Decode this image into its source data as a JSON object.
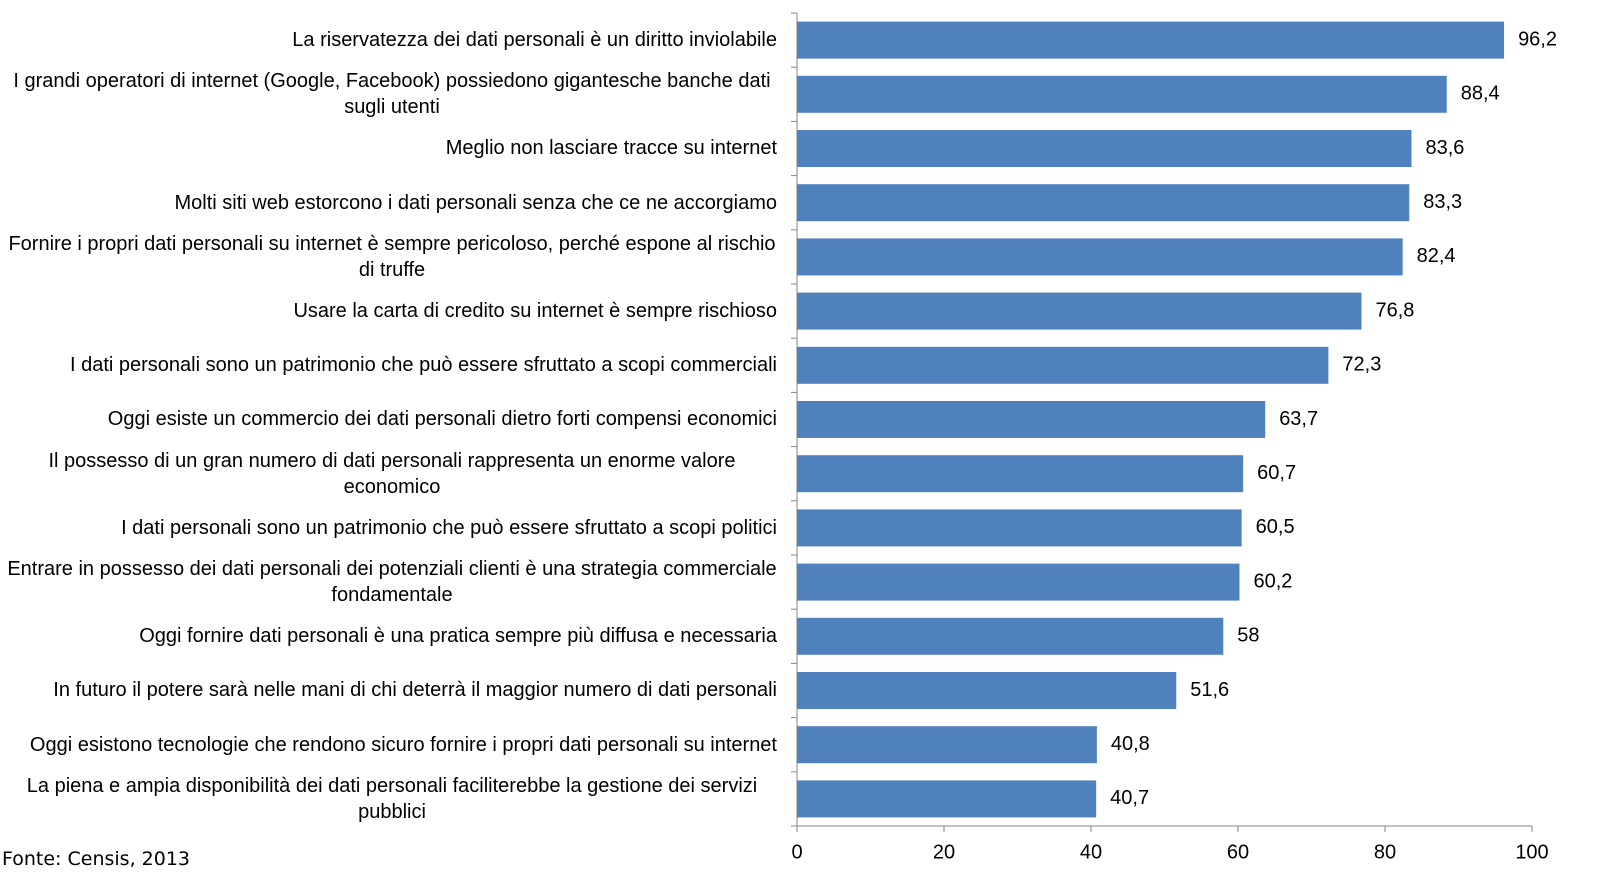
{
  "chart_data": {
    "type": "barh",
    "categories": [
      "La riservatezza dei dati personali è un diritto inviolabile",
      "I grandi operatori di internet (Google, Facebook) possiedono gigantesche banche dati sugli utenti",
      "Meglio non lasciare tracce su internet",
      "Molti siti web estorcono i dati personali senza che ce ne accorgiamo",
      "Fornire i propri dati personali su internet è sempre pericoloso, perché espone al rischio di truffe",
      "Usare la carta di credito su internet è sempre rischioso",
      "I dati personali sono un patrimonio che può essere sfruttato a scopi commerciali",
      "Oggi esiste un commercio dei dati personali dietro forti compensi economici",
      "Il possesso di un gran numero di dati personali rappresenta un enorme valore economico",
      "I dati personali sono un patrimonio che può essere sfruttato a scopi politici",
      "Entrare in possesso dei dati personali dei potenziali clienti è una strategia commerciale fondamentale",
      "Oggi fornire dati personali è una pratica sempre più diffusa e necessaria",
      "In futuro il potere sarà nelle mani di chi deterrà il maggior numero di dati personali",
      "Oggi esistono tecnologie che rendono sicuro fornire i propri dati personali su internet",
      "La piena e ampia disponibilità dei dati personali faciliterebbe la gestione dei servizi pubblici"
    ],
    "values": [
      96.2,
      88.4,
      83.6,
      83.3,
      82.4,
      76.8,
      72.3,
      63.7,
      60.7,
      60.5,
      60.2,
      58,
      51.6,
      40.8,
      40.7
    ],
    "value_labels": [
      "96,2",
      "88,4",
      "83,6",
      "83,3",
      "82,4",
      "76,8",
      "72,3",
      "63,7",
      "60,7",
      "60,5",
      "60,2",
      "58",
      "51,6",
      "40,8",
      "40,7"
    ],
    "color": "#4f81bd",
    "xlim": [
      0,
      100
    ],
    "xticks": [
      0,
      20,
      40,
      60,
      80,
      100
    ],
    "source": "Fonte: Censis, 2013"
  }
}
